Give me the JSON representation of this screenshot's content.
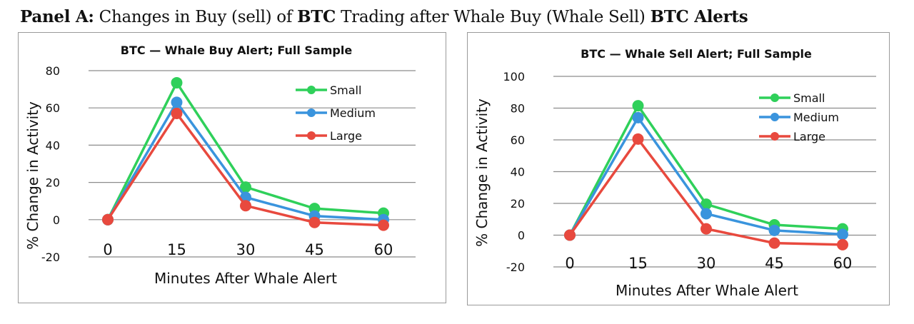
{
  "panel": {
    "label": "Panel A:",
    "text_1": "Changes in Buy (sell) of",
    "bold_1": "BTC",
    "text_2": "Trading after Whale Buy (Whale Sell)",
    "bold_2": "BTC Alerts"
  },
  "colors": {
    "Small": "#2fd05a",
    "Medium": "#3a94dd",
    "Large": "#e8493e",
    "grid": "#8c8c8c"
  },
  "chart_data": [
    {
      "type": "line",
      "title": "BTC — Whale Buy Alert; Full Sample",
      "xlabel": "Minutes After Whale Alert",
      "ylabel": "% Change in Activity",
      "categories": [
        "0",
        "15",
        "30",
        "45",
        "60"
      ],
      "ylim": [
        -20,
        80
      ],
      "yticks": [
        -20,
        0,
        20,
        40,
        60,
        80
      ],
      "grid": true,
      "legend_position": "top-right",
      "series": [
        {
          "name": "Small",
          "values": [
            0,
            73.5,
            17.5,
            6,
            3.5
          ]
        },
        {
          "name": "Medium",
          "values": [
            0,
            63,
            12,
            2,
            0
          ]
        },
        {
          "name": "Large",
          "values": [
            0,
            57,
            7.5,
            -1.5,
            -3
          ]
        }
      ]
    },
    {
      "type": "line",
      "title": "BTC — Whale Sell Alert; Full Sample",
      "xlabel": "Minutes After Whale Alert",
      "ylabel": "% Change in Activity",
      "categories": [
        "0",
        "15",
        "30",
        "45",
        "60"
      ],
      "ylim": [
        -20,
        100
      ],
      "yticks": [
        -20,
        0,
        20,
        40,
        60,
        80,
        100
      ],
      "grid": true,
      "legend_position": "top-right",
      "series": [
        {
          "name": "Small",
          "values": [
            0,
            81.5,
            19.5,
            6.5,
            4
          ]
        },
        {
          "name": "Medium",
          "values": [
            0,
            74,
            13.5,
            3,
            0.5
          ]
        },
        {
          "name": "Large",
          "values": [
            0,
            60.5,
            4,
            -5,
            -6
          ]
        }
      ]
    }
  ]
}
